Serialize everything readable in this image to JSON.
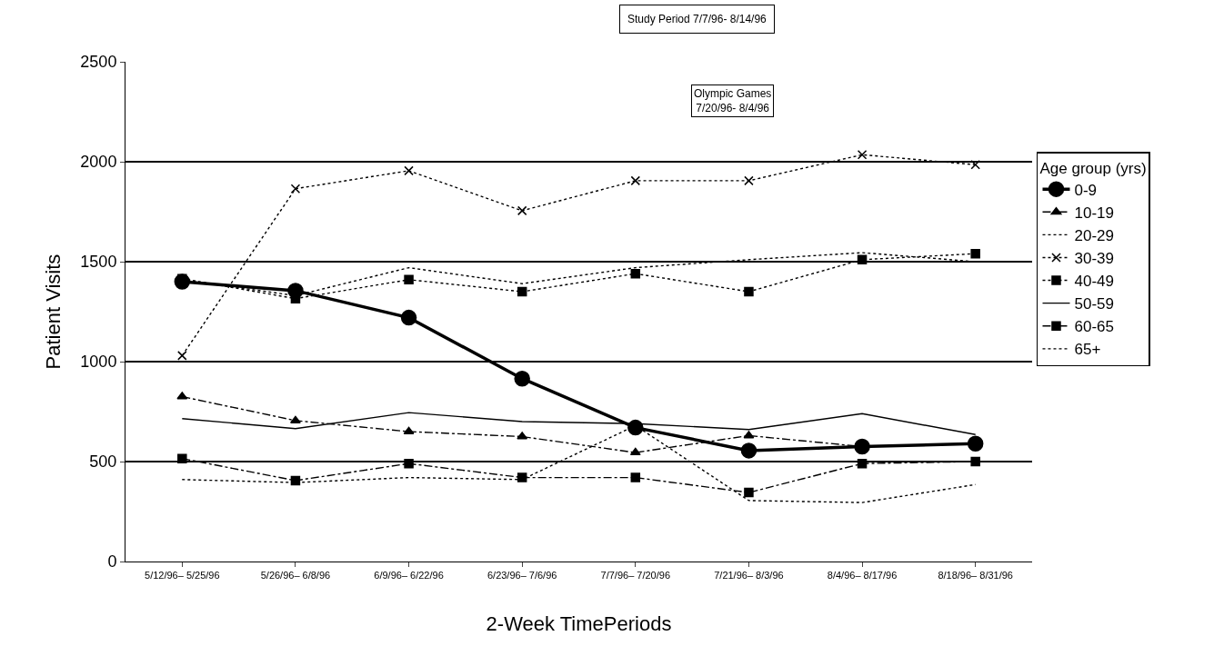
{
  "chart_data": {
    "type": "line",
    "xlabel": "2-Week TimePeriods",
    "ylabel": "Patient Visits",
    "legend_title": "Age group (yrs)",
    "categories": [
      "5/12/96– 5/25/96",
      "5/26/96– 6/8/96",
      "6/9/96– 6/22/96",
      "6/23/96– 7/6/96",
      "7/7/96– 7/20/96",
      "7/21/96– 8/3/96",
      "8/4/96– 8/17/96",
      "8/18/96– 8/31/96"
    ],
    "series": [
      {
        "name": "0-9",
        "color": "#000000",
        "marker": "circle",
        "line_style": "solid",
        "values": [
          1400,
          1355,
          1220,
          915,
          670,
          555,
          575,
          590
        ]
      },
      {
        "name": "10-19",
        "color": "#000000",
        "marker": "triangle",
        "line_style": "dashed",
        "values": [
          825,
          705,
          650,
          625,
          545,
          630,
          575,
          590
        ]
      },
      {
        "name": "20-29",
        "color": "#000000",
        "marker": "none",
        "line_style": "dotted",
        "values": [
          1410,
          1330,
          1470,
          1390,
          1470,
          1510,
          1545,
          1500
        ]
      },
      {
        "name": "30-39",
        "color": "#000000",
        "marker": "cross",
        "line_style": "dotted",
        "values": [
          1030,
          1865,
          1955,
          1755,
          1905,
          1905,
          2035,
          1985
        ]
      },
      {
        "name": "40-49",
        "color": "#000000",
        "marker": "square",
        "line_style": "dotted",
        "values": [
          1415,
          1315,
          1410,
          1350,
          1440,
          1350,
          1510,
          1540
        ]
      },
      {
        "name": "50-59",
        "color": "#000000",
        "marker": "none",
        "line_style": "solid",
        "values": [
          715,
          665,
          745,
          700,
          690,
          660,
          740,
          635
        ]
      },
      {
        "name": "60-65",
        "color": "#000000",
        "marker": "square",
        "line_style": "dashed",
        "values": [
          515,
          405,
          490,
          420,
          420,
          345,
          490,
          500
        ]
      },
      {
        "name": "65+",
        "color": "#000000",
        "marker": "none",
        "line_style": "dotted",
        "values": [
          410,
          395,
          420,
          410,
          680,
          305,
          295,
          385
        ]
      }
    ],
    "ylim": [
      0,
      2500
    ],
    "yticks": [
      0,
      500,
      1000,
      1500,
      2000,
      2500
    ],
    "grid": "y",
    "legend": "right",
    "annotations": [
      "Study Period 7/7/96- 8/14/96",
      "Olympic Games\n7/20/96- 8/4/96"
    ]
  }
}
